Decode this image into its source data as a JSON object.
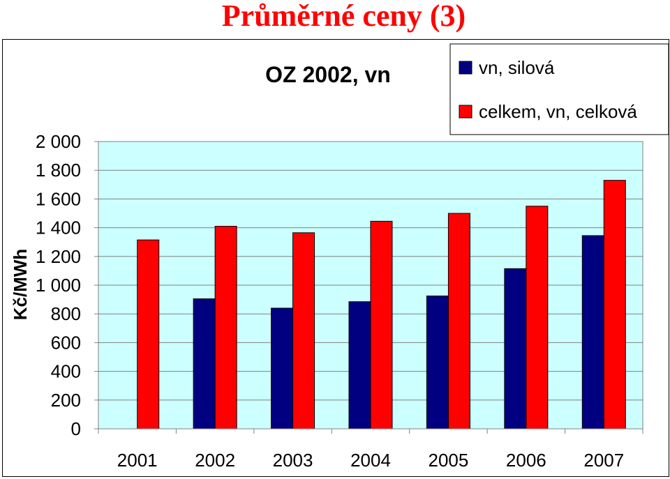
{
  "page_title": "Průměrné ceny (3)",
  "chart_data": {
    "type": "bar",
    "title": "OZ 2002, vn",
    "xlabel": "",
    "ylabel": "Kč/MWh",
    "ylim": [
      0,
      2000
    ],
    "yticks": [
      "0",
      "200",
      "400",
      "600",
      "800",
      "1 000",
      "1 200",
      "1 400",
      "1 600",
      "1 800",
      "2 000"
    ],
    "categories": [
      "2001",
      "2002",
      "2003",
      "2004",
      "2005",
      "2006",
      "2007"
    ],
    "series": [
      {
        "name": "vn, silová",
        "color": "#000080",
        "values": [
          0,
          905,
          840,
          885,
          925,
          1115,
          1345
        ]
      },
      {
        "name": "celkem, vn, celková",
        "color": "#ff0000",
        "values": [
          1315,
          1410,
          1365,
          1445,
          1500,
          1550,
          1730
        ]
      }
    ],
    "plot_background": "#ccffff",
    "grid": true,
    "legend": "top-right"
  }
}
